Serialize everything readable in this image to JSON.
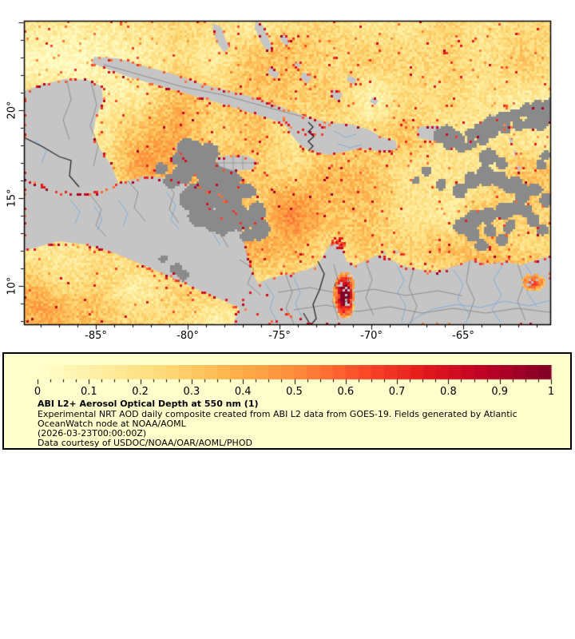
{
  "map": {
    "x_tick_labels": [
      "-85°",
      "-80°",
      "-75°",
      "-70°",
      "-65°"
    ],
    "y_tick_labels": [
      "20°",
      "15°",
      "10°"
    ]
  },
  "legend": {
    "tick_labels": [
      "0",
      "0.1",
      "0.2",
      "0.3",
      "0.4",
      "0.5",
      "0.6",
      "0.7",
      "0.8",
      "0.9",
      "1"
    ],
    "title": "ABI L2+ Aerosol Optical Depth at 550 nm (1)",
    "description_line1": "Experimental NRT AOD daily composite created from ABI L2 data from GOES-19. Fields generated by Atlantic",
    "description_line2": "OceanWatch node at NOAA/AOML",
    "timestamp": "(2026-03-23T00:00:00Z)",
    "courtesy": "Data courtesy of USDOC/NOAA/OAR/AOML/PHOD"
  },
  "colors": {
    "page_bg": "#ffffff",
    "legend_bg": "#ffffcc",
    "frame": "#000000",
    "land_gray": "#c5c5c5",
    "cloud_gray": "#8a8a8a",
    "river_blue": "#85aedd",
    "admin_gray": "#8f8f8f",
    "border_black": "#2a2a2a",
    "colormap_stops": [
      "#ffffcc",
      "#ffeda0",
      "#fed976",
      "#feb24c",
      "#fd8d3c",
      "#fc4e2a",
      "#e31a1c",
      "#bd0026",
      "#800026"
    ]
  },
  "chart_data": {
    "type": "heatmap",
    "title": "ABI L2+ Aerosol Optical Depth at 550 nm (1)",
    "variable": "Aerosol Optical Depth at 550 nm",
    "colormap": "YlOrRd",
    "colorbar_range": [
      0,
      1
    ],
    "colorbar_ticks": [
      0,
      0.1,
      0.2,
      0.3,
      0.4,
      0.5,
      0.6,
      0.7,
      0.8,
      0.9,
      1
    ],
    "x_axis_ticks_deg_lon": [
      -85,
      -80,
      -75,
      -70,
      -65
    ],
    "y_axis_ticks_deg_lat": [
      20,
      15,
      10
    ],
    "legend_position": "bottom"
  }
}
